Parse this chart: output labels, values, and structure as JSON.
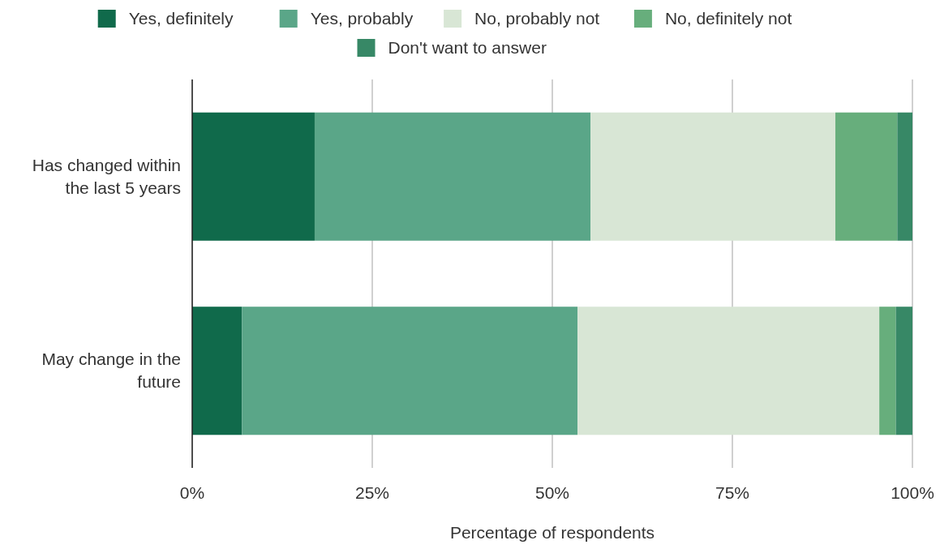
{
  "chart_data": {
    "type": "bar",
    "orientation": "horizontal",
    "stacked": true,
    "xlabel": "Percentage of respondents",
    "categories": [
      "Has changed within the last 5 years",
      "May change in the future"
    ],
    "series": [
      {
        "name": "Yes, definitely",
        "color": "#106a4b",
        "values": [
          17.0,
          6.9
        ]
      },
      {
        "name": "Yes, probably",
        "color": "#5aa688",
        "values": [
          38.3,
          46.6
        ]
      },
      {
        "name": "No, probably not",
        "color": "#d8e6d5",
        "values": [
          34.0,
          41.9
        ]
      },
      {
        "name": "No, definitely not",
        "color": "#67ae7c",
        "values": [
          8.6,
          2.3
        ]
      },
      {
        "name": "Don't want to answer",
        "color": "#378866",
        "values": [
          2.1,
          2.3
        ]
      }
    ],
    "xlim": [
      0,
      100
    ],
    "xticks": [
      {
        "value": 0,
        "label": "0%"
      },
      {
        "value": 25,
        "label": "25%"
      },
      {
        "value": 50,
        "label": "50%"
      },
      {
        "value": 75,
        "label": "75%"
      },
      {
        "value": 100,
        "label": "100%"
      }
    ],
    "grid": "x",
    "legend": "top"
  }
}
